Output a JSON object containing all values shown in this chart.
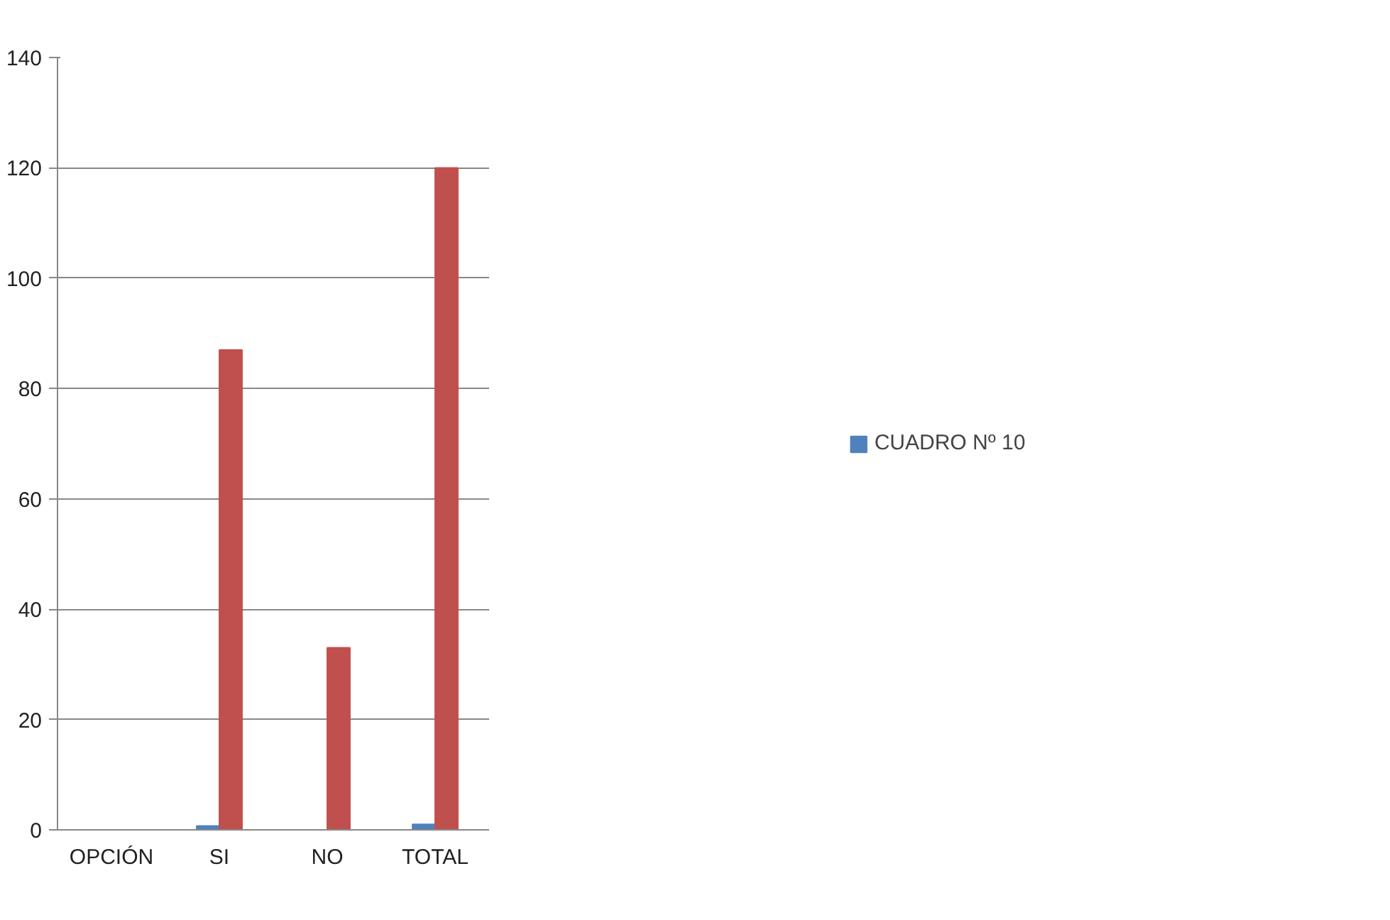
{
  "chart_data": {
    "type": "bar",
    "categories": [
      "OPCIÓN",
      "SI",
      "NO",
      "TOTAL"
    ],
    "series": [
      {
        "name": "CUADRO Nº 10",
        "color": "#4f81bd",
        "values": [
          null,
          0.7,
          null,
          1
        ]
      },
      {
        "color": "#c0504d",
        "values": [
          null,
          87,
          33,
          120
        ]
      }
    ],
    "ylim": [
      0,
      140
    ],
    "yticks": [
      0,
      20,
      40,
      60,
      80,
      100,
      120,
      140
    ],
    "grid": "y",
    "legend": "right"
  }
}
